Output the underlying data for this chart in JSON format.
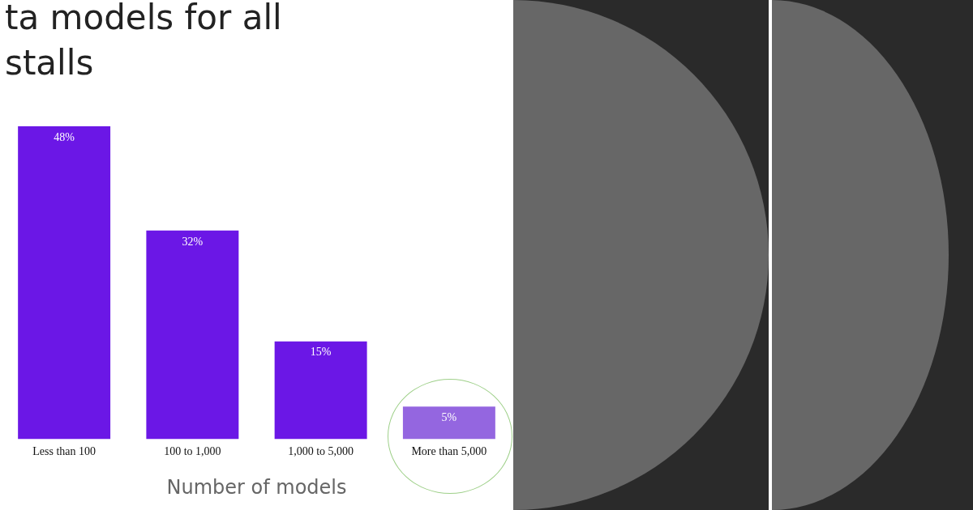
{
  "chart_data": {
    "type": "bar",
    "title": "ta models for all stalls",
    "xlabel": "Number of models",
    "categories": [
      "Less than 100",
      "100 to 1,000",
      "1,000 to 5,000",
      "More than 5,000"
    ],
    "values": [
      48,
      32,
      15,
      5
    ],
    "colors": [
      "#6b17e6",
      "#6b17e6",
      "#6b17e6",
      "#9466e0"
    ],
    "value_labels": [
      "48%",
      "32%",
      "15%",
      "5%"
    ]
  }
}
